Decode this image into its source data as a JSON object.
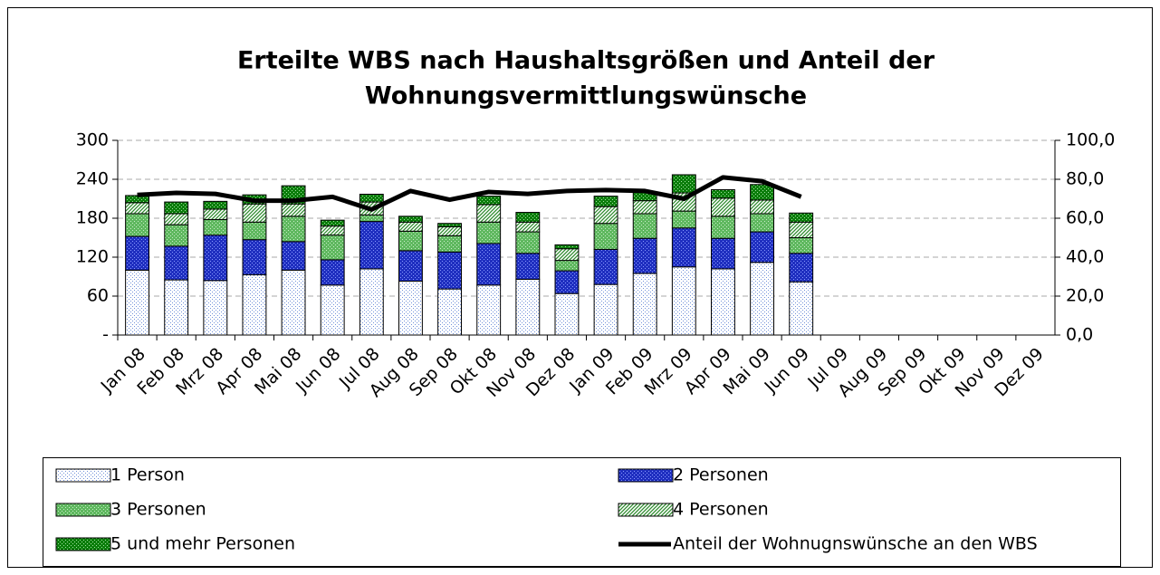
{
  "chart_data": {
    "type": "stacked-bar-line",
    "title": [
      "Erteilte WBS nach Haushaltsgrößen und Anteil der",
      "Wohnungsvermittlungswünsche"
    ],
    "categories": [
      "Jan 08",
      "Feb 08",
      "Mrz 08",
      "Apr 08",
      "Mai 08",
      "Jun 08",
      "Jul 08",
      "Aug 08",
      "Sep 08",
      "Okt 08",
      "Nov 08",
      "Dez 08",
      "Jan 09",
      "Feb 09",
      "Mrz 09",
      "Apr 09",
      "Mai 09",
      "Jun 09",
      "Jul 09",
      "Aug 09",
      "Sep 09",
      "Okt 09",
      "Nov 09",
      "Dez 09"
    ],
    "ylim": [
      0,
      300
    ],
    "yticks": [
      {
        "value": 0,
        "label": "-"
      },
      60,
      120,
      180,
      240,
      300
    ],
    "y2lim": [
      0,
      100
    ],
    "y2ticks": [
      {
        "value": 0,
        "label": "0,0"
      },
      {
        "value": 20,
        "label": "20,0"
      },
      {
        "value": 40,
        "label": "40,0"
      },
      {
        "value": 60,
        "label": "60,0"
      },
      {
        "value": 80,
        "label": "80,0"
      },
      {
        "value": 100,
        "label": "100,0"
      }
    ],
    "grid": true,
    "series": [
      {
        "name": "1 Person",
        "kind": "bar",
        "color": "#ffffff",
        "pattern": "dots",
        "pattern_color": "#6f8fd8",
        "values": [
          100,
          85,
          84,
          93,
          100,
          77,
          102,
          83,
          71,
          77,
          86,
          64,
          78,
          95,
          105,
          102,
          112,
          82,
          null,
          null,
          null,
          null,
          null,
          null
        ]
      },
      {
        "name": "2 Personen",
        "kind": "bar",
        "color": "#1f2fc0",
        "pattern": "dots",
        "pattern_color": "#8899ff",
        "values": [
          52,
          52,
          70,
          54,
          44,
          39,
          73,
          47,
          57,
          64,
          40,
          35,
          54,
          54,
          60,
          47,
          47,
          44,
          null,
          null,
          null,
          null,
          null,
          null
        ]
      },
      {
        "name": "3 Personen",
        "kind": "bar",
        "color": "#5fb85f",
        "pattern": "dots",
        "pattern_color": "#c8ecc8",
        "values": [
          35,
          33,
          24,
          27,
          39,
          38,
          10,
          30,
          25,
          33,
          33,
          16,
          40,
          38,
          26,
          34,
          28,
          24,
          null,
          null,
          null,
          null,
          null,
          null
        ]
      },
      {
        "name": "4 Personen",
        "kind": "bar",
        "color": "#ffffff",
        "pattern": "stripes",
        "pattern_color": "#2e8b2e",
        "values": [
          17,
          17,
          16,
          28,
          19,
          14,
          20,
          14,
          14,
          27,
          15,
          18,
          26,
          20,
          28,
          28,
          21,
          24,
          null,
          null,
          null,
          null,
          null,
          null
        ]
      },
      {
        "name": "5 und mehr Personen",
        "kind": "bar",
        "color": "#0b7d0b",
        "pattern": "dots",
        "pattern_color": "#9fe09f",
        "values": [
          11,
          18,
          12,
          14,
          28,
          9,
          12,
          9,
          5,
          13,
          15,
          6,
          16,
          13,
          28,
          13,
          24,
          14,
          null,
          null,
          null,
          null,
          null,
          null
        ]
      },
      {
        "name": "Anteil der Wohnugnswünsche an den WBS",
        "kind": "line",
        "axis": "y2",
        "color": "#000000",
        "values": [
          72,
          73,
          72.5,
          69,
          69,
          71,
          64.5,
          74,
          69.5,
          73.5,
          72.5,
          74,
          74.5,
          74,
          70,
          81,
          79,
          71,
          null,
          null,
          null,
          null,
          null,
          null
        ]
      }
    ]
  }
}
